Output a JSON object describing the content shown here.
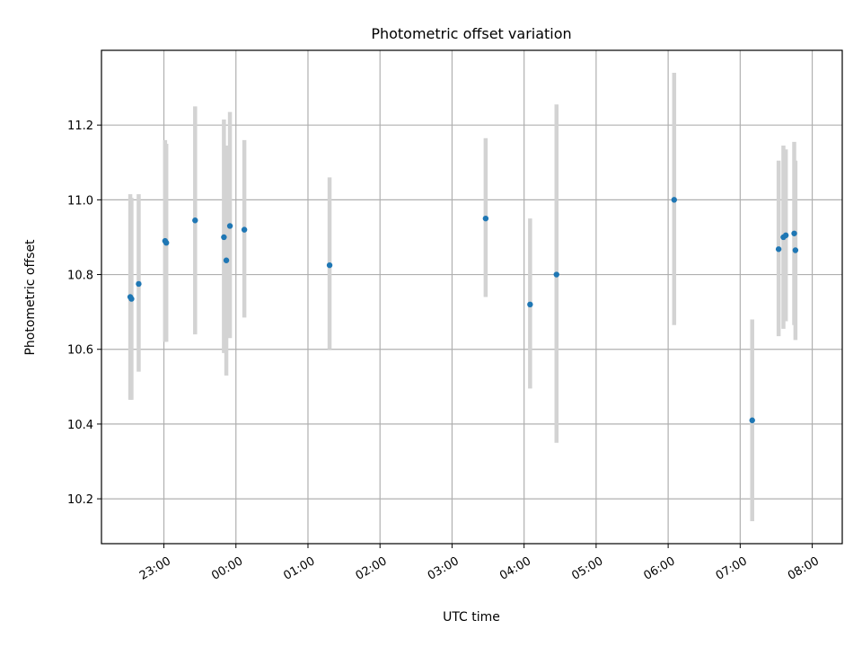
{
  "chart_data": {
    "type": "scatter",
    "title": "Photometric offset variation",
    "xlabel": "UTC time",
    "ylabel": "Photometric offset",
    "xlim": [
      "2000-01-01 22:08",
      "2000-01-02 08:25"
    ],
    "ylim": [
      10.08,
      11.4
    ],
    "x_ticks": [
      {
        "value": "2000-01-01 23:00",
        "label": "23:00"
      },
      {
        "value": "2000-01-02 00:00",
        "label": "00:00"
      },
      {
        "value": "2000-01-02 01:00",
        "label": "01:00"
      },
      {
        "value": "2000-01-02 02:00",
        "label": "02:00"
      },
      {
        "value": "2000-01-02 03:00",
        "label": "03:00"
      },
      {
        "value": "2000-01-02 04:00",
        "label": "04:00"
      },
      {
        "value": "2000-01-02 05:00",
        "label": "05:00"
      },
      {
        "value": "2000-01-02 06:00",
        "label": "06:00"
      },
      {
        "value": "2000-01-02 07:00",
        "label": "07:00"
      },
      {
        "value": "2000-01-02 08:00",
        "label": "08:00"
      }
    ],
    "y_ticks": [
      {
        "value": 10.2,
        "label": "10.2"
      },
      {
        "value": 10.4,
        "label": "10.4"
      },
      {
        "value": 10.6,
        "label": "10.6"
      },
      {
        "value": 10.8,
        "label": "10.8"
      },
      {
        "value": 11.0,
        "label": "11.0"
      },
      {
        "value": 11.2,
        "label": "11.2"
      }
    ],
    "grid": true,
    "marker_color": "#1f77b4",
    "errorbar_color": "#d3d3d3",
    "points": [
      {
        "x": "2000-01-01 22:32",
        "y": 10.74,
        "lo": 10.465,
        "hi": 11.015
      },
      {
        "x": "2000-01-01 22:33",
        "y": 10.735,
        "lo": 10.465,
        "hi": 11.005
      },
      {
        "x": "2000-01-01 22:39",
        "y": 10.775,
        "lo": 10.54,
        "hi": 11.015
      },
      {
        "x": "2000-01-01 23:01",
        "y": 10.89,
        "lo": 10.62,
        "hi": 11.16
      },
      {
        "x": "2000-01-01 23:02",
        "y": 10.885,
        "lo": 10.62,
        "hi": 11.15
      },
      {
        "x": "2000-01-01 23:26",
        "y": 10.945,
        "lo": 10.64,
        "hi": 11.25
      },
      {
        "x": "2000-01-01 23:50",
        "y": 10.9,
        "lo": 10.59,
        "hi": 11.215
      },
      {
        "x": "2000-01-01 23:52",
        "y": 10.838,
        "lo": 10.53,
        "hi": 11.145
      },
      {
        "x": "2000-01-01 23:55",
        "y": 10.93,
        "lo": 10.63,
        "hi": 11.235
      },
      {
        "x": "2000-01-02 00:07",
        "y": 10.92,
        "lo": 10.685,
        "hi": 11.16
      },
      {
        "x": "2000-01-02 01:18",
        "y": 10.825,
        "lo": 10.6,
        "hi": 11.06
      },
      {
        "x": "2000-01-02 03:28",
        "y": 10.95,
        "lo": 10.74,
        "hi": 11.165
      },
      {
        "x": "2000-01-02 04:05",
        "y": 10.72,
        "lo": 10.495,
        "hi": 10.95
      },
      {
        "x": "2000-01-02 04:27",
        "y": 10.8,
        "lo": 10.35,
        "hi": 11.255
      },
      {
        "x": "2000-01-02 06:05",
        "y": 11.0,
        "lo": 10.665,
        "hi": 11.34
      },
      {
        "x": "2000-01-02 07:10",
        "y": 10.41,
        "lo": 10.14,
        "hi": 10.68
      },
      {
        "x": "2000-01-02 07:32",
        "y": 10.868,
        "lo": 10.635,
        "hi": 11.105
      },
      {
        "x": "2000-01-02 07:36",
        "y": 10.9,
        "lo": 10.655,
        "hi": 11.145
      },
      {
        "x": "2000-01-02 07:38",
        "y": 10.905,
        "lo": 10.675,
        "hi": 11.135
      },
      {
        "x": "2000-01-02 07:45",
        "y": 10.91,
        "lo": 10.665,
        "hi": 11.155
      },
      {
        "x": "2000-01-02 07:46",
        "y": 10.865,
        "lo": 10.625,
        "hi": 11.105
      }
    ]
  }
}
